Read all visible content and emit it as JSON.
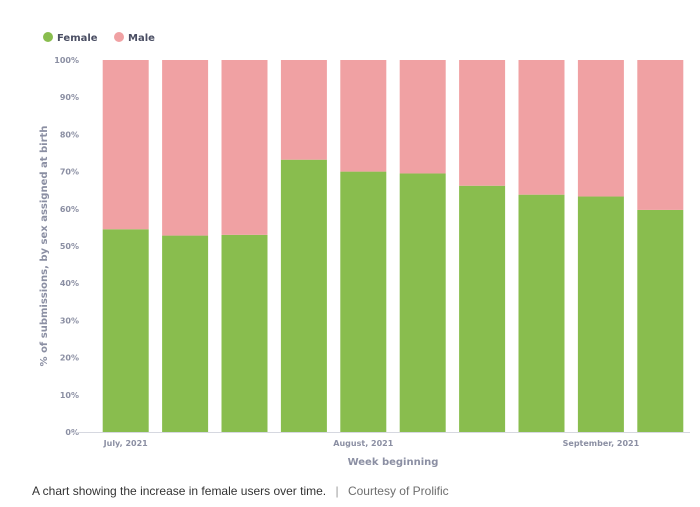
{
  "chart_data": {
    "type": "bar",
    "stacked": true,
    "categories": [
      "",
      "",
      "",
      "",
      "",
      "",
      "",
      "",
      "",
      ""
    ],
    "x_tick_labels": [
      {
        "label": "July, 2021",
        "index": 0
      },
      {
        "label": "August, 2021",
        "index": 4
      },
      {
        "label": "September, 2021",
        "index": 8
      }
    ],
    "series": [
      {
        "name": "Female",
        "color": "#89bd4e",
        "values": [
          54.5,
          52.8,
          53.0,
          73.2,
          70.0,
          69.5,
          66.2,
          63.8,
          63.3,
          59.7
        ]
      },
      {
        "name": "Male",
        "color": "#f0a1a3",
        "values": [
          45.5,
          47.2,
          47.0,
          26.8,
          30.0,
          30.5,
          33.8,
          36.2,
          36.7,
          40.3
        ]
      }
    ],
    "y_ticks": [
      "0%",
      "10%",
      "20%",
      "30%",
      "40%",
      "50%",
      "60%",
      "70%",
      "80%",
      "90%",
      "100%"
    ],
    "ylim": [
      0,
      100
    ],
    "xlabel": "Week beginning",
    "ylabel": "% of submissions, by sex assigned at birth",
    "legend_position": "top-left",
    "grid": false
  },
  "caption": {
    "text": "A chart showing the increase in female users over time.",
    "separator": "|",
    "credit": "Courtesy of Prolific"
  }
}
